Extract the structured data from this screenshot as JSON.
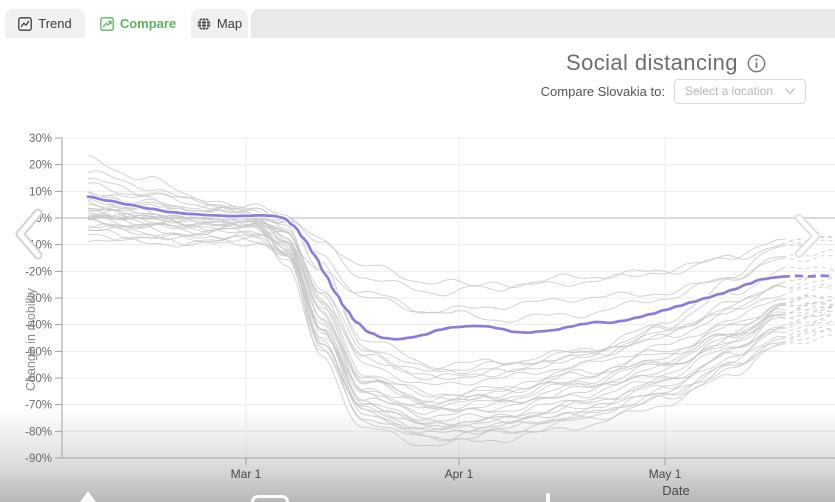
{
  "tabs": {
    "items": [
      {
        "label": "Trend",
        "icon": "trend-chart-icon",
        "active": false
      },
      {
        "label": "Compare",
        "icon": "compare-chart-icon",
        "active": true
      },
      {
        "label": "Map",
        "icon": "globe-icon",
        "active": false
      }
    ]
  },
  "header": {
    "title": "Social distancing",
    "compare_label": "Compare Slovakia to:",
    "dropdown_placeholder": "Select a location"
  },
  "colors": {
    "accent_green": "#5cb463",
    "highlight_purple": "#8c7ce0",
    "background_line": "#c6c6c6",
    "grid": "#ededed",
    "zero_line": "#b5b5b5",
    "axis": "#9e9e9e",
    "ytick_text": "#6b6b6b",
    "xtick_text": "#484848"
  },
  "chart_data": {
    "type": "line",
    "title": "Social distancing",
    "xlabel": "Date",
    "ylabel": "Change in mobility",
    "ylim": [
      -90,
      30
    ],
    "grid": true,
    "legend": "none",
    "yticks": [
      {
        "value": 30,
        "label": "30%"
      },
      {
        "value": 20,
        "label": "20%"
      },
      {
        "value": 10,
        "label": "10%"
      },
      {
        "value": 0,
        "label": "0%"
      },
      {
        "value": -10,
        "label": "-10%"
      },
      {
        "value": -20,
        "label": "-20%"
      },
      {
        "value": -30,
        "label": "-30%"
      },
      {
        "value": -40,
        "label": "-40%"
      },
      {
        "value": -50,
        "label": "-50%"
      },
      {
        "value": -60,
        "label": "-60%"
      },
      {
        "value": -70,
        "label": "-70%"
      },
      {
        "value": -80,
        "label": "-80%"
      },
      {
        "value": -90,
        "label": "-90%"
      }
    ],
    "xticks": [
      {
        "label": "Mar 1",
        "day": 23
      },
      {
        "label": "Apr 1",
        "day": 54
      },
      {
        "label": "May 1",
        "day": 84
      }
    ],
    "dash_start_day": 101,
    "x_end_day": 108.7,
    "highlight": {
      "name": "Slovakia",
      "color": "#8c7ce0",
      "days": [
        0,
        3,
        6,
        9,
        12,
        15,
        18,
        21,
        23,
        25,
        27,
        28.5,
        30,
        31.5,
        33,
        34.5,
        36,
        37.5,
        39,
        41,
        43,
        45,
        47,
        49,
        51,
        53,
        56,
        58,
        60,
        62,
        64,
        66,
        68,
        70,
        72,
        74,
        76,
        78,
        80,
        82,
        84,
        86,
        88,
        90,
        92,
        94,
        96,
        98,
        100,
        101
      ],
      "values": [
        8,
        6.5,
        5,
        3.5,
        2.2,
        1.5,
        1,
        0.7,
        0.8,
        1,
        0.8,
        0,
        -3,
        -8,
        -14,
        -21,
        -28,
        -34,
        -39,
        -43,
        -45,
        -45.5,
        -44.8,
        -43.8,
        -42,
        -41,
        -40.5,
        -40.6,
        -41.5,
        -42.7,
        -43,
        -42.5,
        -42,
        -40.8,
        -39.8,
        -39,
        -39.3,
        -38.5,
        -37.3,
        -36,
        -34.5,
        -33,
        -31.5,
        -30,
        -28.5,
        -26.8,
        -24.8,
        -23,
        -22.3,
        -22
      ],
      "dash_days": [
        101,
        103,
        105,
        107,
        108.7
      ],
      "dash_values": [
        -22,
        -21.7,
        -21.9,
        -21.7,
        -21.8
      ]
    },
    "background": {
      "description": "unlabeled comparison locations",
      "color": "#c6c6c6",
      "keyframe_days": [
        0,
        8,
        16,
        24,
        29,
        34,
        40,
        50,
        60,
        72,
        84,
        94,
        101,
        107.5
      ],
      "wobble": {
        "amp1": 1.0,
        "freq1": 0.55,
        "amp2": 0.5,
        "freq2": 1.3
      },
      "series": [
        [
          17,
          12,
          6,
          3,
          -4,
          -28,
          -52,
          -60,
          -58,
          -52,
          -45,
          -35,
          -28,
          -26
        ],
        [
          22,
          15,
          8,
          2,
          -1,
          -18,
          -45,
          -55,
          -54,
          -50,
          -40,
          -28,
          -20,
          -18
        ],
        [
          10,
          7,
          4,
          2,
          -6,
          -35,
          -62,
          -68,
          -66,
          -60,
          -52,
          -42,
          -35,
          -33
        ],
        [
          8,
          5,
          2,
          0,
          -9,
          -42,
          -70,
          -78,
          -76,
          -70,
          -62,
          -50,
          -40,
          -37
        ],
        [
          6,
          4,
          1,
          -1,
          -13,
          -48,
          -75,
          -82,
          -80,
          -74,
          -66,
          -55,
          -45,
          -42
        ],
        [
          5,
          3,
          0,
          -2,
          -16,
          -52,
          -79,
          -85,
          -83,
          -78,
          -70,
          -58,
          -48,
          -44
        ],
        [
          4,
          2,
          0,
          1,
          -4,
          -28,
          -55,
          -63,
          -60,
          -55,
          -48,
          -38,
          -30,
          -27
        ],
        [
          3,
          1,
          -1,
          0,
          -7,
          -32,
          -58,
          -66,
          -64,
          -58,
          -50,
          -40,
          -32,
          -30
        ],
        [
          2,
          0,
          -2,
          -1,
          -11,
          -42,
          -68,
          -74,
          -72,
          -66,
          -58,
          -46,
          -36,
          -33
        ],
        [
          1,
          -1,
          -3,
          -2,
          -14,
          -46,
          -72,
          -79,
          -77,
          -72,
          -64,
          -52,
          -42,
          -38
        ],
        [
          0,
          -2,
          -4,
          -3,
          -18,
          -50,
          -76,
          -83,
          -81,
          -76,
          -68,
          -56,
          -46,
          -42
        ],
        [
          -1,
          -3,
          -5,
          -4,
          -9,
          -36,
          -60,
          -70,
          -68,
          -62,
          -54,
          -44,
          -34,
          -31
        ],
        [
          -2,
          -4,
          -6,
          -5,
          -6,
          -30,
          -52,
          -60,
          -58,
          -52,
          -44,
          -34,
          -26,
          -23
        ],
        [
          -3,
          -5,
          -7,
          -6,
          -12,
          -44,
          -66,
          -72,
          -70,
          -64,
          -56,
          -45,
          -35,
          -32
        ],
        [
          12,
          9,
          5,
          3,
          0,
          -10,
          -22,
          -28,
          -25,
          -22,
          -20,
          -15,
          -10,
          -8
        ],
        [
          7,
          5,
          3,
          2,
          -2,
          -14,
          -30,
          -35,
          -33,
          -30,
          -28,
          -22,
          -16,
          -14
        ],
        [
          -4,
          -6,
          -8,
          -7,
          -15,
          -48,
          -74,
          -80,
          -78,
          -74,
          -66,
          -54,
          -44,
          -40
        ],
        [
          -5,
          -7,
          -8,
          -6,
          -10,
          -38,
          -64,
          -71,
          -69,
          -63,
          -55,
          -45,
          -36,
          -33
        ],
        [
          -6,
          -8,
          -9,
          -8,
          -13,
          -42,
          -70,
          -76,
          -74,
          -68,
          -60,
          -48,
          -38,
          -35
        ],
        [
          -8,
          -9,
          -10,
          -9,
          -15,
          -45,
          -73,
          -81,
          -79,
          -74,
          -67,
          -56,
          -46,
          -43
        ],
        [
          14,
          10,
          6,
          4,
          1,
          -20,
          -48,
          -57,
          -55,
          -50,
          -42,
          -32,
          -24,
          -22
        ],
        [
          9,
          6,
          3,
          1,
          -5,
          -33,
          -61,
          -69,
          -67,
          -61,
          -53,
          -43,
          -34,
          -31
        ],
        [
          4,
          2,
          1,
          0,
          -8,
          -37,
          -65,
          -73,
          -71,
          -65,
          -57,
          -46,
          -37,
          -34
        ],
        [
          0,
          -1,
          -2,
          -1,
          -10,
          -41,
          -69,
          -77,
          -75,
          -69,
          -61,
          -50,
          -40,
          -36
        ],
        [
          -2,
          -3,
          -4,
          -3,
          -12,
          -43,
          -71,
          -78,
          -76,
          -71,
          -63,
          -51,
          -41,
          -38
        ],
        [
          6,
          4,
          2,
          1,
          -1,
          -8,
          -18,
          -24,
          -26,
          -24,
          -20,
          -14,
          -9,
          -7
        ],
        [
          2,
          1,
          0,
          -1,
          -6,
          -26,
          -50,
          -58,
          -56,
          -51,
          -43,
          -33,
          -25,
          -22
        ],
        [
          -1,
          -2,
          -3,
          -2,
          -8,
          -34,
          -59,
          -67,
          -65,
          -59,
          -51,
          -41,
          -32,
          -29
        ],
        [
          3,
          1,
          -2,
          -6,
          -12,
          -20,
          -28,
          -35,
          -38,
          -36,
          -30,
          -22,
          -15,
          -12
        ],
        [
          1,
          0,
          -1,
          -2,
          -10,
          -39,
          -66,
          -70,
          -65,
          -55,
          -40,
          -22,
          -10,
          -8
        ]
      ]
    }
  }
}
